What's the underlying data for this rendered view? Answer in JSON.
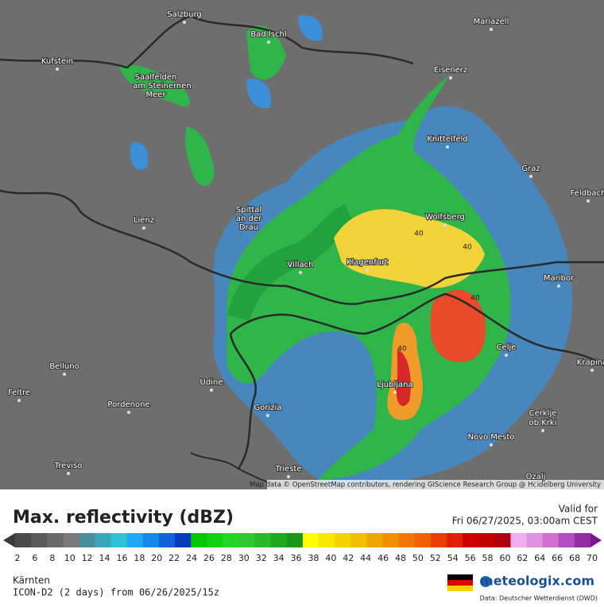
{
  "map": {
    "cities": [
      "Salzburg",
      "Mariazell",
      "Bad Ischl",
      "Kufstein",
      "Saalfelden",
      "am Steinernen",
      "Meer",
      "Eisenerz",
      "Knittelfeld",
      "Graz",
      "Feldbach",
      "Lienz",
      "Spittal",
      "an der",
      "Drau",
      "Wolfsberg",
      "Villach",
      "Klagenfurt",
      "Maribor",
      "Celje",
      "Krapina",
      "Belluno",
      "Udine",
      "Ljubljana",
      "Feltre",
      "Pordenone",
      "Gorizia",
      "Cerklje",
      "ob Krki",
      "Novo Mesto",
      "Treviso",
      "Trieste",
      "Ozalj"
    ],
    "contour_labels": [
      "40",
      "40",
      "40",
      "40"
    ],
    "attribution": "Map data © OpenStreetMap contributors, rendering GIScience Research Group @ Heidelberg University"
  },
  "legend": {
    "title": "Max. reflectivity (dBZ)",
    "valid_label": "Valid for",
    "valid_time": "Fri 06/27/2025, 03:00am CEST",
    "scale": [
      "2",
      "6",
      "8",
      "10",
      "12",
      "14",
      "16",
      "18",
      "20",
      "22",
      "24",
      "26",
      "28",
      "30",
      "32",
      "34",
      "36",
      "38",
      "40",
      "42",
      "44",
      "46",
      "48",
      "50",
      "52",
      "54",
      "56",
      "58",
      "60",
      "62",
      "64",
      "66",
      "68",
      "70"
    ]
  },
  "footer": {
    "region": "Kärnten",
    "model": "ICON-D2 (2 days) from 06/26/2025/15z",
    "brand": "meteologix.com",
    "source": "Data: Deutscher Wetterdienst (DWD)"
  }
}
